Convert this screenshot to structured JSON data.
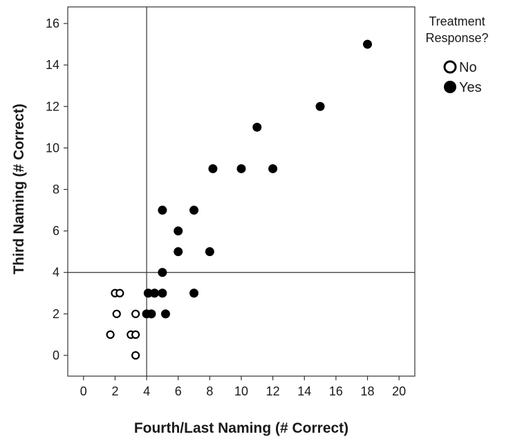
{
  "chart_data": {
    "type": "scatter",
    "title": "",
    "xlabel": "Fourth/Last Naming (# Correct)",
    "ylabel": "Third Naming (# Correct)",
    "xlim": [
      -1,
      21
    ],
    "ylim": [
      -1,
      16.8
    ],
    "xticks": [
      "0",
      "2",
      "4",
      "6",
      "8",
      "10",
      "12",
      "14",
      "16",
      "18",
      "20"
    ],
    "yticks": [
      "0",
      "2",
      "4",
      "6",
      "8",
      "10",
      "12",
      "14",
      "16"
    ],
    "reference_lines": {
      "x": 4,
      "y": 4
    },
    "grid": false,
    "legend": {
      "title_lines": [
        "Treatment",
        "Response?"
      ],
      "placement": "right",
      "entries": [
        "No",
        "Yes"
      ]
    },
    "series": [
      {
        "name": "No",
        "marker": "open-circle",
        "color": "#000000",
        "points": [
          [
            2.0,
            3
          ],
          [
            2.3,
            3
          ],
          [
            2.1,
            2
          ],
          [
            3.3,
            2
          ],
          [
            1.7,
            1
          ],
          [
            3.0,
            1
          ],
          [
            3.3,
            1
          ],
          [
            3.3,
            0
          ]
        ]
      },
      {
        "name": "Yes",
        "marker": "filled-circle",
        "color": "#000000",
        "points": [
          [
            18,
            15
          ],
          [
            15,
            12
          ],
          [
            11,
            11
          ],
          [
            8.2,
            9
          ],
          [
            10,
            9
          ],
          [
            12,
            9
          ],
          [
            5,
            7
          ],
          [
            7,
            7
          ],
          [
            6,
            6
          ],
          [
            6,
            5
          ],
          [
            8,
            5
          ],
          [
            5,
            4
          ],
          [
            4.1,
            3
          ],
          [
            4.5,
            3
          ],
          [
            5,
            3
          ],
          [
            7,
            3
          ],
          [
            4,
            2
          ],
          [
            4.3,
            2
          ],
          [
            5.2,
            2
          ]
        ]
      }
    ]
  }
}
